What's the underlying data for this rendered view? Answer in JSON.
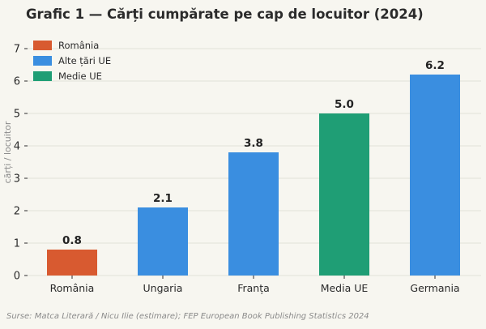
{
  "title": "Grafic 1 — Cărți cumpărate pe cap de locuitor (2024)",
  "source": "Surse: Matca Literară / Nicu Ilie (estimare); FEP European Book Publishing Statistics 2024",
  "colors": {
    "background": "#f7f6f0",
    "grid": "#e2e1d8",
    "axis": "#2b2b2b",
    "romania": "#d85a30",
    "other_eu": "#3a8ee0",
    "eu_average": "#1f9e75"
  },
  "chart_data": {
    "type": "bar",
    "title": "Grafic 1 — Cărți cumpărate pe cap de locuitor (2024)",
    "xlabel": "",
    "ylabel": "cărți / locuitor",
    "ylim": [
      0,
      7
    ],
    "yticks": [
      "0",
      "1",
      "2",
      "3",
      "4",
      "5",
      "6",
      "7"
    ],
    "grid": true,
    "legend_position": "top-left",
    "categories": [
      "România",
      "Ungaria",
      "Franța",
      "Media UE",
      "Germania"
    ],
    "values": [
      0.8,
      2.1,
      3.8,
      5.0,
      6.2
    ],
    "value_labels": [
      "0.8",
      "2.1",
      "3.8",
      "5.0",
      "6.2"
    ],
    "bar_groups": [
      "romania",
      "other_eu",
      "other_eu",
      "eu_average",
      "other_eu"
    ],
    "legend": [
      {
        "key": "romania",
        "label": "România"
      },
      {
        "key": "other_eu",
        "label": "Alte țări UE"
      },
      {
        "key": "eu_average",
        "label": "Medie UE"
      }
    ]
  }
}
